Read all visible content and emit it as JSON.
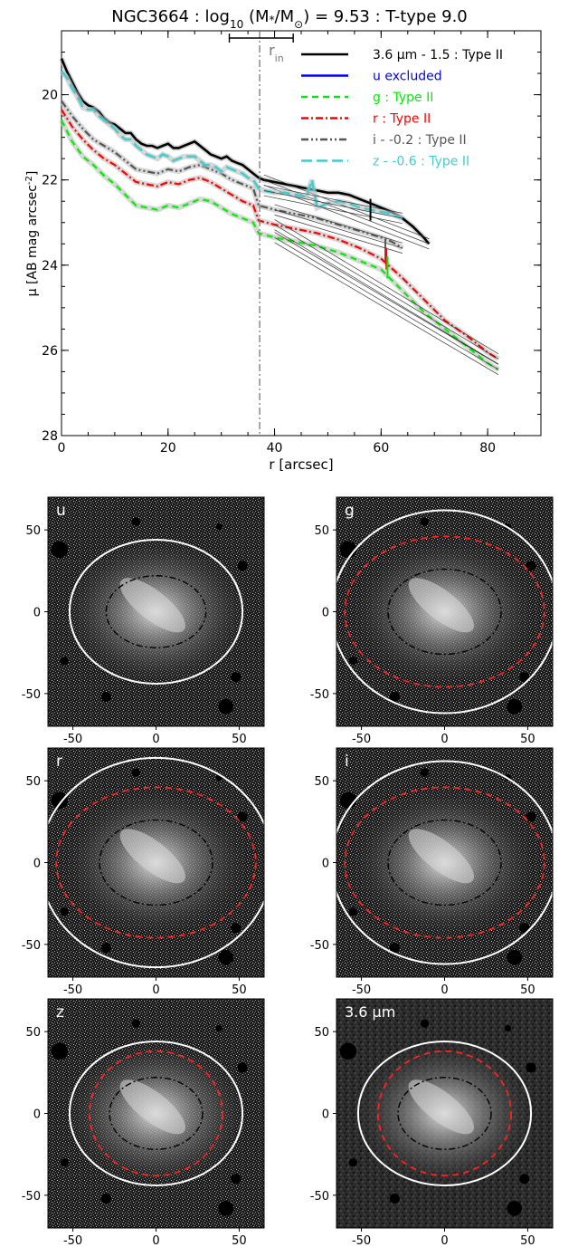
{
  "chart_data": [
    {
      "type": "line",
      "title_parts": [
        "NGC3664 : log",
        "10",
        " (M",
        "*",
        "/M",
        "⊙",
        ") = 9.53 : T-type 9.0"
      ],
      "xlabel": "r [arcsec]",
      "ylabel_parts": [
        "μ [AB mag arcsec",
        "-2",
        "]"
      ],
      "xlim": [
        0,
        90
      ],
      "ylim": [
        28,
        18.5
      ],
      "y_inverted": true,
      "xticks": [
        "0",
        "20",
        "40",
        "60",
        "80"
      ],
      "yticks": [
        "20",
        "22",
        "24",
        "26",
        "28"
      ],
      "r_in": {
        "value": 37.2,
        "label": "r",
        "sub": "in",
        "err_low": 31.5,
        "err_high": 43.5
      },
      "legend_position": "top-right",
      "series": [
        {
          "name": "3.6 μm - 1.5 : Type II",
          "color": "#000000",
          "dash": "solid",
          "x": [
            0,
            1,
            2,
            3,
            4,
            5,
            6,
            7,
            8,
            9,
            10,
            11,
            12,
            13,
            14,
            15,
            16,
            17,
            18,
            19,
            20,
            21,
            22,
            23,
            24,
            25,
            26,
            27,
            28,
            29,
            30,
            31,
            32,
            33,
            34,
            35,
            36,
            37,
            38,
            40,
            42,
            44,
            46,
            48,
            50,
            52,
            54,
            56,
            58,
            60,
            62,
            64,
            66,
            68,
            69
          ],
          "y": [
            19.15,
            19.45,
            19.7,
            19.95,
            20.15,
            20.25,
            20.3,
            20.4,
            20.55,
            20.65,
            20.7,
            20.8,
            20.9,
            20.9,
            21.05,
            21.15,
            21.2,
            21.2,
            21.25,
            21.2,
            21.15,
            21.25,
            21.25,
            21.2,
            21.15,
            21.1,
            21.2,
            21.3,
            21.4,
            21.45,
            21.5,
            21.45,
            21.55,
            21.6,
            21.65,
            21.75,
            21.85,
            21.95,
            22.0,
            22.05,
            22.1,
            22.15,
            22.2,
            22.25,
            22.3,
            22.3,
            22.35,
            22.45,
            22.55,
            22.65,
            22.75,
            22.9,
            23.1,
            23.35,
            23.5
          ]
        },
        {
          "name": "u excluded",
          "color": "#0000ff",
          "dash": "solid",
          "x": [],
          "y": []
        },
        {
          "name": "g : Type II",
          "color": "#00ee00",
          "dash": "dashed",
          "x": [
            0,
            2,
            4,
            6,
            8,
            10,
            12,
            14,
            16,
            18,
            20,
            22,
            24,
            26,
            28,
            30,
            32,
            34,
            36,
            37,
            40,
            44,
            48,
            52,
            56,
            60,
            64,
            68,
            72,
            76,
            80,
            82
          ],
          "y": [
            20.6,
            21.1,
            21.45,
            21.65,
            21.9,
            22.1,
            22.35,
            22.6,
            22.65,
            22.7,
            22.6,
            22.65,
            22.55,
            22.45,
            22.5,
            22.65,
            22.8,
            22.9,
            23.0,
            23.25,
            23.35,
            23.45,
            23.55,
            23.7,
            23.9,
            24.1,
            24.6,
            25.1,
            25.5,
            25.9,
            26.3,
            26.45
          ]
        },
        {
          "name": "r : Type II",
          "color": "#ff0000",
          "dash": "dashdot",
          "x": [
            0,
            2,
            4,
            6,
            8,
            10,
            12,
            14,
            16,
            18,
            20,
            22,
            24,
            26,
            28,
            30,
            32,
            34,
            36,
            37,
            40,
            44,
            48,
            52,
            56,
            60,
            64,
            68,
            72,
            76,
            80,
            82
          ],
          "y": [
            20.35,
            20.75,
            21.05,
            21.3,
            21.5,
            21.65,
            21.85,
            22.05,
            22.1,
            22.15,
            22.05,
            22.1,
            22.0,
            21.95,
            22.05,
            22.2,
            22.35,
            22.5,
            22.6,
            22.95,
            23.05,
            23.15,
            23.25,
            23.4,
            23.6,
            23.85,
            24.3,
            24.8,
            25.3,
            25.65,
            26.05,
            26.2
          ]
        },
        {
          "name": "i - -0.2 : Type II",
          "color": "#555555",
          "dash": "dashdotdot",
          "x": [
            0,
            2,
            4,
            6,
            8,
            10,
            12,
            14,
            16,
            18,
            20,
            22,
            24,
            26,
            28,
            30,
            32,
            34,
            36,
            37,
            40,
            44,
            48,
            52,
            56,
            60,
            62,
            64
          ],
          "y": [
            20.15,
            20.5,
            20.8,
            21.05,
            21.2,
            21.35,
            21.55,
            21.75,
            21.8,
            21.85,
            21.75,
            21.8,
            21.7,
            21.65,
            21.75,
            21.85,
            22.0,
            22.1,
            22.2,
            22.6,
            22.7,
            22.8,
            22.9,
            23.05,
            23.2,
            23.35,
            23.45,
            23.6
          ]
        },
        {
          "name": "z - -0.6 : Type II",
          "color": "#44cccc",
          "dash": "longdash",
          "x": [
            0,
            1,
            2,
            3,
            4,
            5,
            6,
            7,
            8,
            9,
            10,
            11,
            12,
            13,
            14,
            15,
            16,
            17,
            18,
            19,
            20,
            21,
            22,
            23,
            24,
            25,
            26,
            27,
            28,
            29,
            30,
            31,
            32,
            33,
            34,
            35,
            36,
            37,
            38,
            40,
            42,
            44,
            46,
            47,
            48,
            50,
            52,
            54,
            56,
            58,
            60,
            62,
            64
          ],
          "y": [
            19.45,
            19.6,
            19.85,
            20.05,
            20.3,
            20.35,
            20.35,
            20.5,
            20.6,
            20.7,
            20.8,
            20.95,
            21.05,
            21.05,
            21.2,
            21.3,
            21.4,
            21.45,
            21.5,
            21.4,
            21.45,
            21.55,
            21.5,
            21.45,
            21.45,
            21.45,
            21.55,
            21.65,
            21.65,
            21.7,
            21.8,
            21.7,
            21.75,
            21.8,
            21.85,
            21.95,
            22.0,
            22.2,
            22.25,
            22.3,
            22.3,
            22.35,
            22.4,
            22.0,
            22.65,
            22.55,
            22.5,
            22.55,
            22.65,
            22.7,
            22.75,
            22.8,
            22.9
          ]
        }
      ]
    },
    {
      "type": "heatmap",
      "grid": "3x2",
      "xticks": [
        "-50",
        "0",
        "50"
      ],
      "yticks": [
        "50",
        "0",
        "-50"
      ],
      "xlim": [
        -65,
        65
      ],
      "ylim": [
        -70,
        70
      ],
      "panels": [
        {
          "label": "u",
          "white": [
            52,
            44
          ],
          "red": null,
          "black": [
            30,
            22
          ]
        },
        {
          "label": "g",
          "white": [
            68,
            62
          ],
          "red": [
            60,
            46
          ],
          "black": [
            34,
            26
          ]
        },
        {
          "label": "r",
          "white": [
            70,
            64
          ],
          "red": [
            60,
            46
          ],
          "black": [
            34,
            26
          ]
        },
        {
          "label": "i",
          "white": [
            68,
            62
          ],
          "red": [
            60,
            46
          ],
          "black": [
            34,
            26
          ]
        },
        {
          "label": "z",
          "white": [
            52,
            44
          ],
          "red": [
            40,
            38
          ],
          "black": [
            28,
            22
          ]
        },
        {
          "label": "3.6 μm",
          "white": [
            52,
            44
          ],
          "red": [
            40,
            38
          ],
          "black": [
            28,
            22
          ]
        }
      ]
    }
  ]
}
